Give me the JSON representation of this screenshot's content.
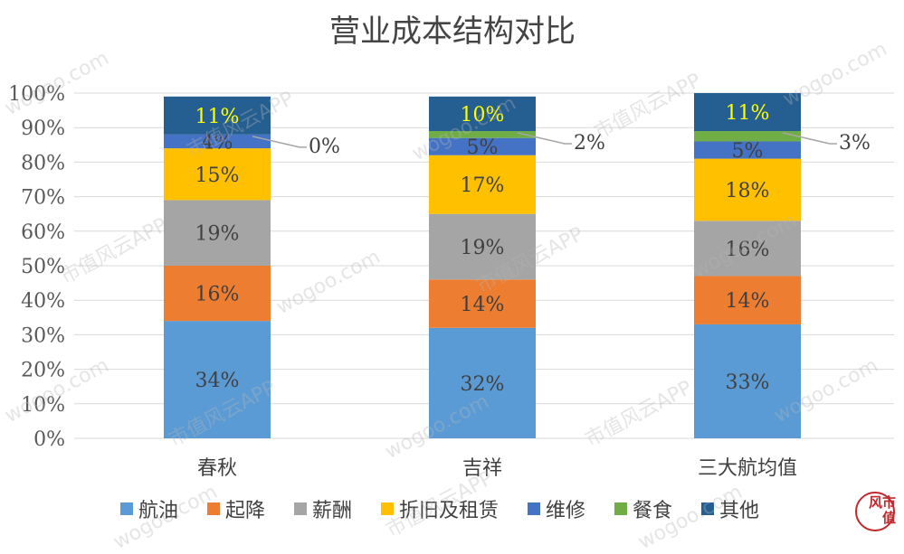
{
  "chart_data": {
    "type": "bar",
    "stacked": true,
    "title": "营业成本结构对比",
    "categories": [
      "春秋",
      "吉祥",
      "三大航均值"
    ],
    "ylim": [
      0,
      100
    ],
    "yticks": [
      "0%",
      "10%",
      "20%",
      "30%",
      "40%",
      "50%",
      "60%",
      "70%",
      "80%",
      "90%",
      "100%"
    ],
    "grid": true,
    "legend_position": "bottom",
    "series": [
      {
        "name": "航油",
        "color": "#5b9bd5",
        "values": [
          34,
          32,
          33
        ],
        "labels": [
          "34%",
          "32%",
          "33%"
        ]
      },
      {
        "name": "起降",
        "color": "#ed7d31",
        "values": [
          16,
          14,
          14
        ],
        "labels": [
          "16%",
          "14%",
          "14%"
        ]
      },
      {
        "name": "薪酬",
        "color": "#a5a5a5",
        "values": [
          19,
          19,
          16
        ],
        "labels": [
          "19%",
          "19%",
          "16%"
        ]
      },
      {
        "name": "折旧及租赁",
        "color": "#ffc000",
        "values": [
          15,
          17,
          18
        ],
        "labels": [
          "15%",
          "17%",
          "18%"
        ]
      },
      {
        "name": "维修",
        "color": "#4472c4",
        "values": [
          4,
          5,
          5
        ],
        "labels": [
          "4%",
          "5%",
          "5%"
        ]
      },
      {
        "name": "餐食",
        "color": "#70ad47",
        "values": [
          0,
          2,
          3
        ],
        "labels": [
          "0%",
          "2%",
          "3%"
        ]
      },
      {
        "name": "其他",
        "color": "#255e91",
        "values": [
          11,
          10,
          11
        ],
        "labels": [
          "11%",
          "10%",
          "11%"
        ]
      }
    ]
  },
  "watermark": {
    "text_a": "wogoo.com",
    "text_b": "市值风云APP"
  },
  "logo": {
    "text": "风市值",
    "color": "#c0282d"
  }
}
